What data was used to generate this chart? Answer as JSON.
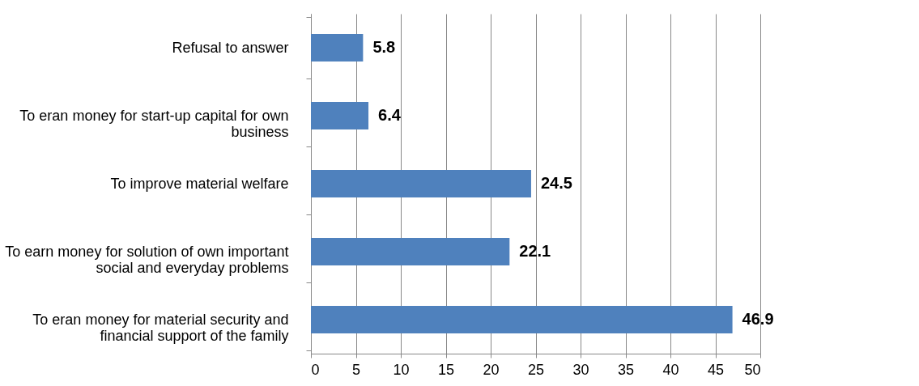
{
  "chart_data": {
    "type": "bar",
    "orientation": "horizontal",
    "categories": [
      "Refusal to answer",
      "To eran money for start-up capital for own business",
      "To improve material welfare",
      "To earn money for solution of own important social and everyday problems",
      "To eran money for material security and financial support of the family"
    ],
    "values": [
      5.8,
      6.4,
      24.5,
      22.1,
      46.9
    ],
    "color": "#4f81bd",
    "xlim": [
      0,
      50
    ],
    "xticks": [
      0,
      5,
      10,
      15,
      20,
      25,
      30,
      35,
      40,
      45,
      50
    ],
    "grid": "x",
    "data_labels": true
  }
}
